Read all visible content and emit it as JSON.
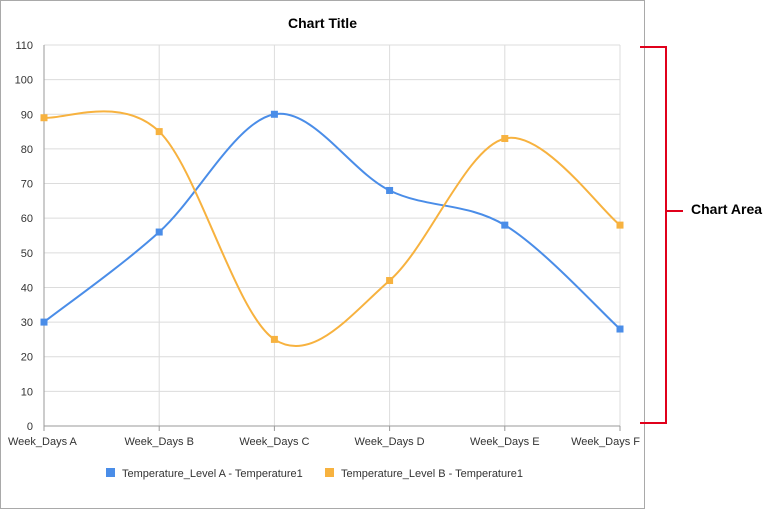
{
  "annotation": {
    "label": "Chart Area",
    "bracket_color": "#e0001b"
  },
  "chart_data": {
    "type": "line",
    "title": "Chart Title",
    "xlabel": "",
    "ylabel": "",
    "categories": [
      "Week_Days A",
      "Week_Days B",
      "Week_Days C",
      "Week_Days D",
      "Week_Days E",
      "Week_Days F"
    ],
    "ylim": [
      0,
      110
    ],
    "yticks": [
      0,
      10,
      20,
      30,
      40,
      50,
      60,
      70,
      80,
      90,
      100,
      110
    ],
    "grid": true,
    "legend_position": "bottom",
    "smooth": true,
    "series": [
      {
        "name": "Temperature_Level A - Temperature1",
        "values": [
          30,
          56,
          90,
          68,
          58,
          28
        ],
        "color": "#4a8de8"
      },
      {
        "name": "Temperature_Level B - Temperature1",
        "values": [
          89,
          85,
          25,
          42,
          83,
          58
        ],
        "color": "#f7b23f"
      }
    ]
  }
}
